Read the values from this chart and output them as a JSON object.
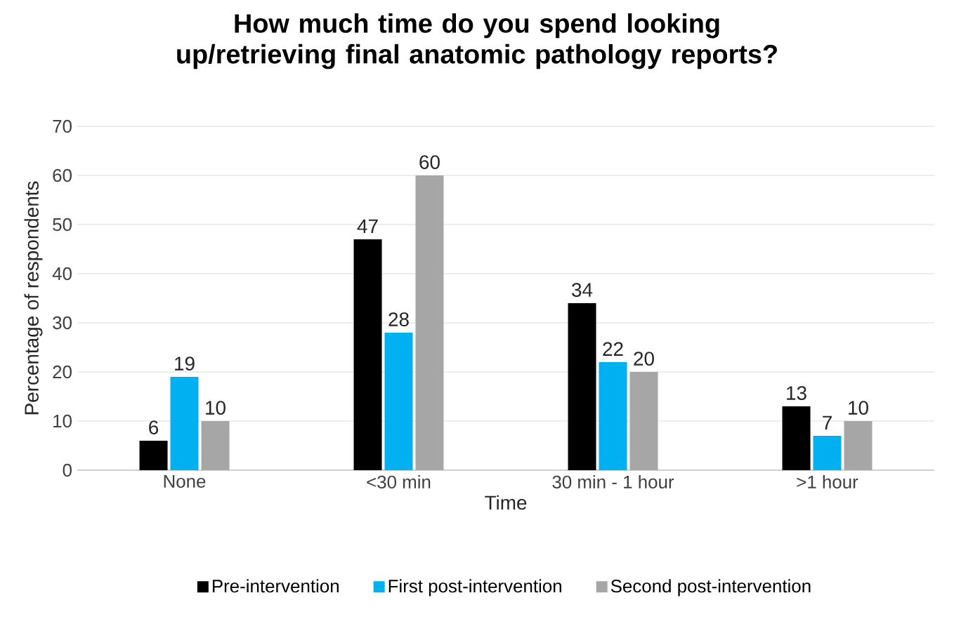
{
  "chart_data": {
    "type": "bar",
    "title": "How much time do you spend looking up/retrieving final anatomic pathology reports?",
    "xlabel": "Time",
    "ylabel": "Percentage of respondents",
    "categories": [
      "None",
      "<30 min",
      "30 min - 1 hour",
      ">1 hour"
    ],
    "series": [
      {
        "name": "Pre-intervention",
        "color": "#000000",
        "values": [
          6,
          47,
          34,
          13
        ]
      },
      {
        "name": "First post-intervention",
        "color": "#00b0f0",
        "values": [
          19,
          28,
          22,
          7
        ]
      },
      {
        "name": "Second post-intervention",
        "color": "#a6a6a6",
        "values": [
          10,
          60,
          20,
          10
        ]
      }
    ],
    "ylim": [
      0,
      70
    ],
    "yticks": [
      0,
      10,
      20,
      30,
      40,
      50,
      60,
      70
    ],
    "grid": "y",
    "legend": "bottom",
    "data_labels": true
  }
}
